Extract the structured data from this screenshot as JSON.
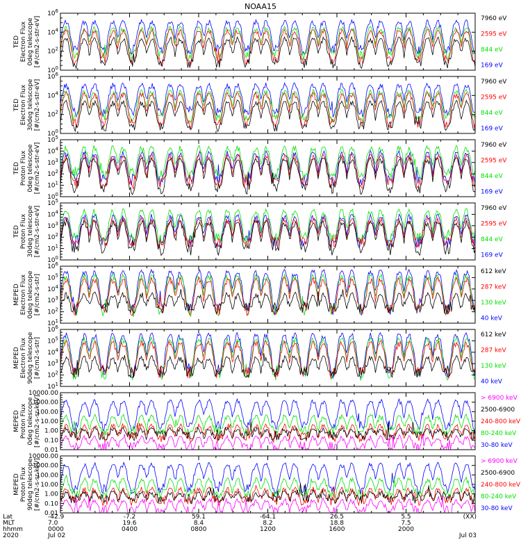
{
  "title": "NOAA15",
  "colors": {
    "black": "#000000",
    "red": "#ff0000",
    "green": "#00e000",
    "blue": "#0000ff",
    "magenta": "#ff00ff"
  },
  "footer": {
    "rows": [
      {
        "label": "Lat",
        "values": [
          "-42.9",
          "-7.2",
          "59.1",
          "-64.1",
          "26.5",
          "5.5",
          "(XX)"
        ]
      },
      {
        "label": "MLT",
        "values": [
          "7.0",
          "19.6",
          "8.4",
          "8.2",
          "18.8",
          "7.5",
          ""
        ]
      },
      {
        "label": "hhmm",
        "values": [
          "0000",
          "0400",
          "0800",
          "1200",
          "1600",
          "2000",
          ""
        ]
      },
      {
        "label": "2020",
        "values": [
          "Jul 02",
          "",
          "",
          "",
          "",
          "",
          "Jul 03"
        ]
      }
    ]
  },
  "chart_data": [
    {
      "type": "line",
      "instrument": "TED",
      "ylabel": [
        "TED",
        "Electron Flux",
        "0deg telescope",
        "[#/cm2-s-str-eV]"
      ],
      "ylog": true,
      "ylim": [
        1,
        1000000.0
      ],
      "y_ticks": [
        {
          "base": "10",
          "exp": "0"
        },
        {
          "base": "10",
          "exp": "2"
        },
        {
          "base": "10",
          "exp": "4"
        },
        {
          "base": "10",
          "exp": "6"
        }
      ],
      "legend": [
        {
          "label": "7960 eV",
          "color": "black"
        },
        {
          "label": "2595 eV",
          "color": "red"
        },
        {
          "label": "844 eV",
          "color": "green"
        },
        {
          "label": "169 eV",
          "color": "blue"
        }
      ],
      "series": [
        {
          "name": "7960 eV",
          "baseline": 5,
          "peak": 3000
        },
        {
          "name": "2595 eV",
          "baseline": 10,
          "peak": 20000
        },
        {
          "name": "844 eV",
          "baseline": 40,
          "peak": 40000
        },
        {
          "name": "169 eV",
          "baseline": 150,
          "peak": 200000
        }
      ]
    },
    {
      "type": "line",
      "instrument": "TED",
      "ylabel": [
        "TED",
        "Electron Flux",
        "30deg telescope",
        "[#/cm2-s-str-eV]"
      ],
      "ylog": true,
      "ylim": [
        1,
        1000000.0
      ],
      "y_ticks": [
        {
          "base": "10",
          "exp": "0"
        },
        {
          "base": "10",
          "exp": "2"
        },
        {
          "base": "10",
          "exp": "4"
        },
        {
          "base": "10",
          "exp": "6"
        }
      ],
      "legend": [
        {
          "label": "7960 eV",
          "color": "black"
        },
        {
          "label": "2595 eV",
          "color": "red"
        },
        {
          "label": "844 eV",
          "color": "green"
        },
        {
          "label": "169 eV",
          "color": "blue"
        }
      ],
      "series": [
        {
          "name": "7960 eV",
          "baseline": 5,
          "peak": 3000
        },
        {
          "name": "2595 eV",
          "baseline": 10,
          "peak": 20000
        },
        {
          "name": "844 eV",
          "baseline": 40,
          "peak": 40000
        },
        {
          "name": "169 eV",
          "baseline": 150,
          "peak": 200000
        }
      ]
    },
    {
      "type": "line",
      "instrument": "TED",
      "ylabel": [
        "TED",
        "Proton Flux",
        "0deg telescope",
        "[#/cm2-s-str-eV]"
      ],
      "ylog": true,
      "ylim": [
        1,
        100000.0
      ],
      "y_ticks": [
        {
          "base": "10",
          "exp": "0"
        },
        {
          "base": "10",
          "exp": "1"
        },
        {
          "base": "10",
          "exp": "2"
        },
        {
          "base": "10",
          "exp": "3"
        },
        {
          "base": "10",
          "exp": "4"
        },
        {
          "base": "10",
          "exp": "5"
        }
      ],
      "legend": [
        {
          "label": "7960 eV",
          "color": "black"
        },
        {
          "label": "2595 eV",
          "color": "red"
        },
        {
          "label": "844 eV",
          "color": "green"
        },
        {
          "label": "169 eV",
          "color": "blue"
        }
      ],
      "series": [
        {
          "name": "7960 eV",
          "baseline": 5,
          "peak": 3000
        },
        {
          "name": "2595 eV",
          "baseline": 15,
          "peak": 5000
        },
        {
          "name": "844 eV",
          "baseline": 100,
          "peak": 30000
        },
        {
          "name": "169 eV",
          "baseline": 30,
          "peak": 10000
        }
      ]
    },
    {
      "type": "line",
      "instrument": "TED",
      "ylabel": [
        "TED",
        "Proton Flux",
        "30deg telescope",
        "[#/cm2-s-str-eV]"
      ],
      "ylog": true,
      "ylim": [
        1,
        100000.0
      ],
      "y_ticks": [
        {
          "base": "10",
          "exp": "0"
        },
        {
          "base": "10",
          "exp": "1"
        },
        {
          "base": "10",
          "exp": "2"
        },
        {
          "base": "10",
          "exp": "3"
        },
        {
          "base": "10",
          "exp": "4"
        },
        {
          "base": "10",
          "exp": "5"
        }
      ],
      "legend": [
        {
          "label": "7960 eV",
          "color": "black"
        },
        {
          "label": "2595 eV",
          "color": "red"
        },
        {
          "label": "844 eV",
          "color": "green"
        },
        {
          "label": "169 eV",
          "color": "blue"
        }
      ],
      "series": [
        {
          "name": "7960 eV",
          "baseline": 8,
          "peak": 3000
        },
        {
          "name": "2595 eV",
          "baseline": 30,
          "peak": 5000
        },
        {
          "name": "844 eV",
          "baseline": 80,
          "peak": 30000
        },
        {
          "name": "169 eV",
          "baseline": 40,
          "peak": 10000
        }
      ]
    },
    {
      "type": "line",
      "instrument": "MEPED",
      "ylabel": [
        "MEPED",
        "Electron Flux",
        "0deg telescope",
        "[#/cm2-s-str]"
      ],
      "ylog": true,
      "ylim": [
        10,
        1000000.0
      ],
      "y_ticks": [
        {
          "base": "10",
          "exp": "1"
        },
        {
          "base": "10",
          "exp": "2"
        },
        {
          "base": "10",
          "exp": "3"
        },
        {
          "base": "10",
          "exp": "4"
        },
        {
          "base": "10",
          "exp": "5"
        },
        {
          "base": "10",
          "exp": "6"
        }
      ],
      "legend": [
        {
          "label": "612 keV",
          "color": "black"
        },
        {
          "label": "287 keV",
          "color": "red"
        },
        {
          "label": "130 keV",
          "color": "green"
        },
        {
          "label": "40 keV",
          "color": "blue"
        }
      ],
      "series": [
        {
          "name": "612 keV",
          "baseline": 200,
          "peak": 5000
        },
        {
          "name": "287 keV",
          "baseline": 150,
          "peak": 100000
        },
        {
          "name": "130 keV",
          "baseline": 100,
          "peak": 200000
        },
        {
          "name": "40 keV",
          "baseline": 150,
          "peak": 500000
        }
      ]
    },
    {
      "type": "line",
      "instrument": "MEPED",
      "ylabel": [
        "MEPED",
        "Electron Flux",
        "90deg telescope",
        "[#/cm2-s-str]"
      ],
      "ylog": true,
      "ylim": [
        10,
        1000000.0
      ],
      "y_ticks": [
        {
          "base": "10",
          "exp": "1"
        },
        {
          "base": "10",
          "exp": "2"
        },
        {
          "base": "10",
          "exp": "3"
        },
        {
          "base": "10",
          "exp": "4"
        },
        {
          "base": "10",
          "exp": "5"
        },
        {
          "base": "10",
          "exp": "6"
        }
      ],
      "legend": [
        {
          "label": "612 keV",
          "color": "black"
        },
        {
          "label": "287 keV",
          "color": "red"
        },
        {
          "label": "130 keV",
          "color": "green"
        },
        {
          "label": "40 keV",
          "color": "blue"
        }
      ],
      "series": [
        {
          "name": "612 keV",
          "baseline": 200,
          "peak": 5000
        },
        {
          "name": "287 keV",
          "baseline": 150,
          "peak": 100000
        },
        {
          "name": "130 keV",
          "baseline": 100,
          "peak": 200000
        },
        {
          "name": "40 keV",
          "baseline": 150,
          "peak": 500000
        }
      ]
    },
    {
      "type": "line",
      "instrument": "MEPED",
      "ylabel": [
        "MEPED",
        "Proton Flux",
        "0deg telescope",
        "[#/cm2-s-sr-keV]"
      ],
      "ylog": true,
      "ylim": [
        0.01,
        10000
      ],
      "y_ticks": [
        {
          "label": "0.01"
        },
        {
          "label": "0.10"
        },
        {
          "label": "1.00"
        },
        {
          "label": "10.00"
        },
        {
          "label": "100.00"
        },
        {
          "label": "1000.00"
        },
        {
          "label": "10000.00"
        }
      ],
      "legend": [
        {
          "label": "> 6900 keV",
          "color": "magenta"
        },
        {
          "label": "2500-6900",
          "color": "black"
        },
        {
          "label": "240-800 keV",
          "color": "red"
        },
        {
          "label": "80-240 keV",
          "color": "green"
        },
        {
          "label": "30-80 keV",
          "color": "blue"
        }
      ],
      "series": [
        {
          "name": "> 6900 keV",
          "baseline": 0.02,
          "peak": 0.3
        },
        {
          "name": "2500-6900",
          "baseline": 0.3,
          "peak": 2
        },
        {
          "name": "240-800 keV",
          "baseline": 0.2,
          "peak": 5
        },
        {
          "name": "80-240 keV",
          "baseline": 1,
          "peak": 50
        },
        {
          "name": "30-80 keV",
          "baseline": 3,
          "peak": 2000
        }
      ]
    },
    {
      "type": "line",
      "instrument": "MEPED",
      "ylabel": [
        "MEPED",
        "Proton Flux",
        "90deg telescope",
        "[#/cm2-s-sr-keV]"
      ],
      "ylog": true,
      "ylim": [
        0.01,
        10000
      ],
      "y_ticks": [
        {
          "label": "0.01"
        },
        {
          "label": "0.10"
        },
        {
          "label": "1.00"
        },
        {
          "label": "10.00"
        },
        {
          "label": "100.00"
        },
        {
          "label": "1000.00"
        },
        {
          "label": "10000.00"
        }
      ],
      "legend": [
        {
          "label": "> 6900 keV",
          "color": "magenta"
        },
        {
          "label": "2500-6900",
          "color": "black"
        },
        {
          "label": "240-800 keV",
          "color": "red"
        },
        {
          "label": "80-240 keV",
          "color": "green"
        },
        {
          "label": "30-80 keV",
          "color": "blue"
        }
      ],
      "series": [
        {
          "name": "> 6900 keV",
          "baseline": 0.02,
          "peak": 0.3
        },
        {
          "name": "2500-6900",
          "baseline": 0.3,
          "peak": 2
        },
        {
          "name": "240-800 keV",
          "baseline": 0.2,
          "peak": 5
        },
        {
          "name": "80-240 keV",
          "baseline": 1,
          "peak": 50
        },
        {
          "name": "30-80 keV",
          "baseline": 3,
          "peak": 2000
        }
      ]
    }
  ]
}
